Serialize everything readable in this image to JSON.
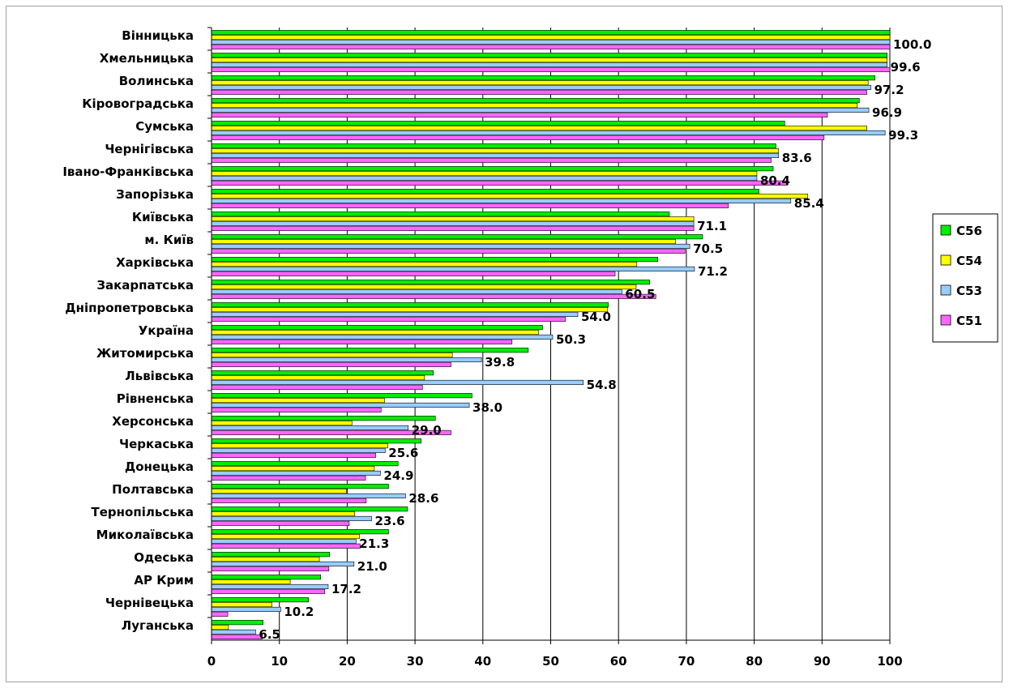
{
  "chart_data": {
    "type": "bar",
    "orientation": "horizontal",
    "categories": [
      "Вінницька",
      "Хмельницька",
      "Волинська",
      "Кіровоградська",
      "Сумська",
      "Чернігівська",
      "Івано-Франківська",
      "Запорізька",
      "Київська",
      "м. Київ",
      "Харківська",
      "Закарпатська",
      "Дніпропетровська",
      "Україна",
      "Житомирська",
      "Львівська",
      "Рівненська",
      "Херсонська",
      "Черкаська",
      "Донецька",
      "Полтавська",
      "Тернопільська",
      "Миколаївська",
      "Одеська",
      "АР Крим",
      "Чернівецька",
      "Луганська"
    ],
    "series": [
      {
        "name": "С56",
        "color": "#00ee00",
        "values": [
          100.0,
          99.6,
          97.8,
          95.5,
          84.5,
          83.2,
          82.8,
          80.7,
          67.5,
          72.4,
          65.8,
          64.6,
          58.5,
          48.8,
          46.7,
          32.7,
          38.4,
          33.0,
          30.9,
          27.5,
          26.1,
          28.9,
          26.1,
          17.4,
          16.1,
          14.3,
          7.6
        ]
      },
      {
        "name": "С54",
        "color": "#ffff00",
        "values": [
          100.0,
          99.6,
          96.8,
          95.2,
          96.6,
          83.6,
          80.4,
          87.9,
          71.1,
          68.4,
          62.7,
          62.6,
          58.4,
          48.2,
          35.5,
          31.4,
          25.5,
          20.7,
          26.0,
          24.0,
          19.9,
          21.1,
          21.8,
          15.9,
          11.6,
          8.9,
          2.5
        ]
      },
      {
        "name": "С53",
        "color": "#99ccff",
        "values": [
          100.0,
          99.6,
          97.2,
          96.9,
          99.3,
          83.6,
          80.4,
          85.4,
          71.1,
          70.5,
          71.2,
          60.5,
          54.0,
          50.3,
          39.8,
          54.8,
          38.0,
          29.0,
          25.6,
          24.9,
          28.6,
          23.6,
          21.3,
          21.0,
          17.2,
          10.2,
          6.5
        ]
      },
      {
        "name": "С51",
        "color": "#ff66ff",
        "values": [
          100.0,
          100.0,
          96.6,
          90.8,
          90.3,
          82.5,
          84.9,
          76.2,
          71.1,
          69.8,
          59.5,
          65.5,
          52.2,
          44.3,
          35.3,
          31.1,
          25.0,
          35.3,
          24.2,
          22.7,
          22.8,
          20.3,
          21.9,
          17.3,
          16.7,
          2.4,
          7.5
        ]
      }
    ],
    "data_labels": [
      "100.0",
      "99.6",
      "97.2",
      "96.9",
      "99.3",
      "83.6",
      "80.4",
      "85.4",
      "71.1",
      "70.5",
      "71.2",
      "60.5",
      "54.0",
      "50.3",
      "39.8",
      "54.8",
      "38.0",
      "29.0",
      "25.6",
      "24.9",
      "28.6",
      "23.6",
      "21.3",
      "21.0",
      "17.2",
      "10.2",
      "6.5"
    ],
    "xlim": [
      0,
      100
    ],
    "xticks": [
      "0",
      "10",
      "20",
      "30",
      "40",
      "50",
      "60",
      "70",
      "80",
      "90",
      "100"
    ],
    "grid": "vertical-major",
    "legend": {
      "position": "right",
      "entries": [
        "С56",
        "С54",
        "С53",
        "С51"
      ]
    }
  }
}
